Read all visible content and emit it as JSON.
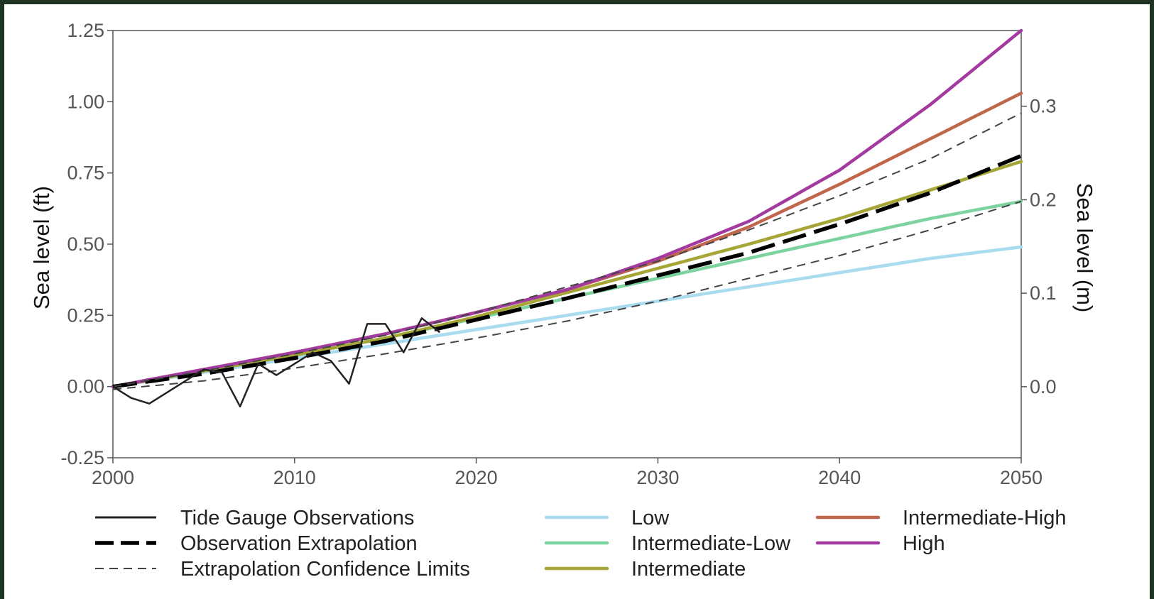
{
  "chart_data": {
    "type": "line",
    "title": "",
    "xlabel": "",
    "ylabel": "Sea level (ft)",
    "ylabel_right": "Sea level (m)",
    "xlim": [
      2000,
      2050
    ],
    "ylim": [
      -0.25,
      1.25
    ],
    "ylim_right": [
      -0.076,
      0.381
    ],
    "x_ticks": [
      2000,
      2010,
      2020,
      2030,
      2040,
      2050
    ],
    "x_tick_labels": [
      "2000",
      "2010",
      "2020",
      "2030",
      "2040",
      "2050"
    ],
    "y_ticks": [
      -0.25,
      0,
      0.25,
      0.5,
      0.75,
      1.0,
      1.25
    ],
    "y_tick_labels": [
      "-0.25",
      "0.00",
      "0.25",
      "0.50",
      "0.75",
      "1.00",
      "1.25"
    ],
    "y_right_ticks": [
      0.0,
      0.1,
      0.2,
      0.3
    ],
    "y_right_tick_labels": [
      "0.0",
      "0.1",
      "0.2",
      "0.3"
    ],
    "grid": false,
    "legend_position": "bottom",
    "x": [
      2000,
      2005,
      2010,
      2015,
      2020,
      2025,
      2030,
      2035,
      2040,
      2045,
      2050
    ],
    "series": [
      {
        "name": "Low",
        "color": "#a9dcef",
        "style": "solid",
        "values": [
          0.0,
          0.05,
          0.1,
          0.15,
          0.2,
          0.25,
          0.3,
          0.35,
          0.4,
          0.45,
          0.49
        ]
      },
      {
        "name": "Intermediate-Low",
        "color": "#7dd3a0",
        "style": "solid",
        "values": [
          0.0,
          0.055,
          0.11,
          0.17,
          0.24,
          0.31,
          0.38,
          0.45,
          0.52,
          0.59,
          0.65
        ]
      },
      {
        "name": "Intermediate",
        "color": "#a6a636",
        "style": "solid",
        "values": [
          0.0,
          0.055,
          0.11,
          0.17,
          0.245,
          0.33,
          0.415,
          0.5,
          0.59,
          0.69,
          0.79
        ]
      },
      {
        "name": "Intermediate-High",
        "color": "#c0664c",
        "style": "solid",
        "values": [
          0.0,
          0.06,
          0.12,
          0.185,
          0.26,
          0.34,
          0.44,
          0.56,
          0.71,
          0.87,
          1.03
        ]
      },
      {
        "name": "High",
        "color": "#a23aa0",
        "style": "solid",
        "values": [
          0.0,
          0.06,
          0.12,
          0.185,
          0.26,
          0.34,
          0.45,
          0.58,
          0.76,
          0.99,
          1.25
        ]
      },
      {
        "name": "Observation Extrapolation",
        "color": "#000000",
        "style": "dashed-thick",
        "values": [
          0.0,
          0.045,
          0.1,
          0.16,
          0.235,
          0.31,
          0.39,
          0.47,
          0.57,
          0.68,
          0.81
        ]
      },
      {
        "name": "Extrapolation Confidence Limits",
        "color": "#444444",
        "style": "dashed-thin",
        "values": [
          0.0,
          0.055,
          0.115,
          0.18,
          0.26,
          0.35,
          0.44,
          0.55,
          0.67,
          0.8,
          0.96
        ]
      },
      {
        "name": "Extrapolation Confidence Limits",
        "color": "#444444",
        "style": "dashed-thin",
        "values": [
          -0.01,
          0.02,
          0.065,
          0.115,
          0.17,
          0.23,
          0.3,
          0.38,
          0.46,
          0.55,
          0.65
        ]
      }
    ],
    "observations": {
      "name": "Tide Gauge Observations",
      "color": "#222222",
      "x": [
        2000,
        2001,
        2002,
        2003,
        2004,
        2005,
        2006,
        2007,
        2008,
        2009,
        2010,
        2011,
        2012,
        2013,
        2014,
        2015,
        2016,
        2017,
        2018
      ],
      "values": [
        0.0,
        -0.04,
        -0.06,
        -0.02,
        0.02,
        0.06,
        0.05,
        -0.07,
        0.08,
        0.04,
        0.08,
        0.12,
        0.09,
        0.01,
        0.22,
        0.22,
        0.12,
        0.24,
        0.19
      ]
    },
    "legend": {
      "columns": [
        [
          "Tide Gauge Observations",
          "Observation Extrapolation",
          "Extrapolation Confidence Limits"
        ],
        [
          "Low",
          "Intermediate-Low",
          "Intermediate"
        ],
        [
          "Intermediate-High",
          "High"
        ]
      ]
    }
  }
}
